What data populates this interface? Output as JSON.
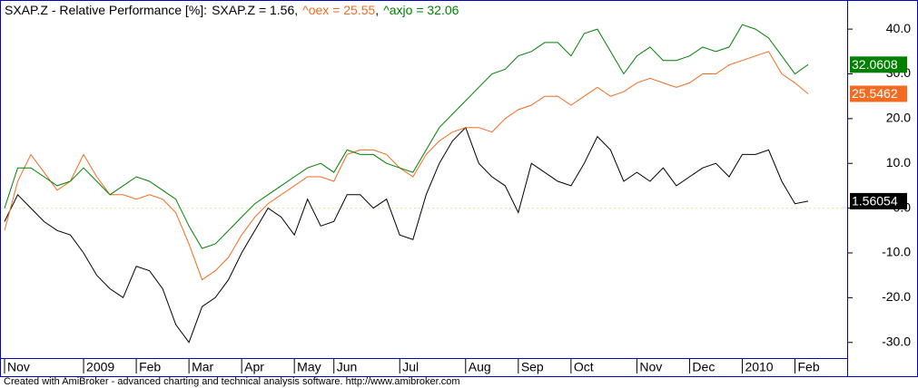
{
  "chart_data": {
    "type": "line",
    "title": "SXAP.Z - Relative Performance [%]:",
    "title_separator": ",",
    "categories": [
      "Nov",
      null,
      null,
      null,
      null,
      null,
      "2009",
      null,
      null,
      null,
      "Feb",
      null,
      null,
      null,
      "Mar",
      null,
      null,
      null,
      "Apr",
      null,
      null,
      null,
      "May",
      null,
      null,
      "Jun",
      null,
      null,
      null,
      null,
      "Jul",
      null,
      null,
      null,
      null,
      "Aug",
      null,
      null,
      null,
      "Sep",
      null,
      null,
      null,
      "Oct",
      null,
      null,
      null,
      null,
      "Nov",
      null,
      null,
      null,
      "Dec",
      null,
      null,
      null,
      "2010",
      null,
      null,
      null,
      "Feb",
      null
    ],
    "series": [
      {
        "name": "SXAP.Z = 1.56",
        "color": "#000000",
        "last_label": "1.56054",
        "values": [
          -3,
          3,
          0,
          -3,
          -5,
          -6,
          -10,
          -15,
          -18,
          -20,
          -13,
          -14,
          -18,
          -26,
          -30,
          -22,
          -20,
          -16,
          -10,
          -5,
          0,
          -2,
          -6,
          2,
          -4,
          -3,
          3,
          3,
          0,
          2,
          -6,
          -7,
          3,
          10,
          15,
          18,
          10,
          7,
          5,
          -1,
          10,
          8,
          6,
          5,
          10,
          16,
          13,
          6,
          8,
          6,
          9,
          5,
          7,
          9,
          10,
          7,
          12,
          12,
          13,
          6,
          1,
          1.56054
        ]
      },
      {
        "name": "^oex = 25.55",
        "color": "#f26b21",
        "last_label": "25.5462",
        "values": [
          -5,
          6,
          12,
          8,
          4,
          6,
          12,
          7,
          3,
          3,
          2,
          3,
          2,
          -1,
          -8,
          -16,
          -14,
          -11,
          -6,
          -2,
          1,
          3,
          5,
          7,
          7,
          6,
          12,
          13,
          13,
          12,
          9,
          7,
          12,
          15,
          17,
          18,
          18,
          17,
          20,
          22,
          23,
          25,
          25,
          23,
          25,
          27,
          25,
          26,
          28,
          29,
          28,
          27,
          28,
          30,
          30,
          32,
          33,
          34,
          35,
          30,
          28,
          25.5462
        ]
      },
      {
        "name": "^axjo = 32.06",
        "color": "#008000",
        "last_label": "32.0608",
        "values": [
          0,
          9,
          9,
          7,
          5,
          6,
          9,
          6,
          3,
          5,
          7,
          6,
          4,
          2,
          -4,
          -9,
          -8,
          -5,
          -2,
          1,
          3,
          5,
          7,
          9,
          10,
          8,
          13,
          12,
          12,
          10,
          9,
          8,
          13,
          18,
          21,
          24,
          27,
          30,
          31,
          34,
          35,
          37,
          37,
          34,
          39,
          40,
          35,
          30,
          34,
          36,
          33,
          33,
          34,
          36,
          35,
          36,
          41,
          40,
          38,
          34,
          30,
          32.0608
        ]
      }
    ],
    "ylim": [
      -33.5,
      46.3
    ],
    "yticks": [
      {
        "value": 40,
        "label": "40.0"
      },
      {
        "value": 30,
        "label": "30.0"
      },
      {
        "value": 20,
        "label": "20.0"
      },
      {
        "value": 10,
        "label": "10.0"
      },
      {
        "value": 0,
        "label": "0.0"
      },
      {
        "value": -10,
        "label": "-10.0"
      },
      {
        "value": -20,
        "label": "-20.0"
      },
      {
        "value": -30,
        "label": "-30.0"
      }
    ],
    "zero_line": true,
    "footer": "Created with AmiBroker - advanced charting and technical analysis software. http://www.amibroker.com"
  }
}
